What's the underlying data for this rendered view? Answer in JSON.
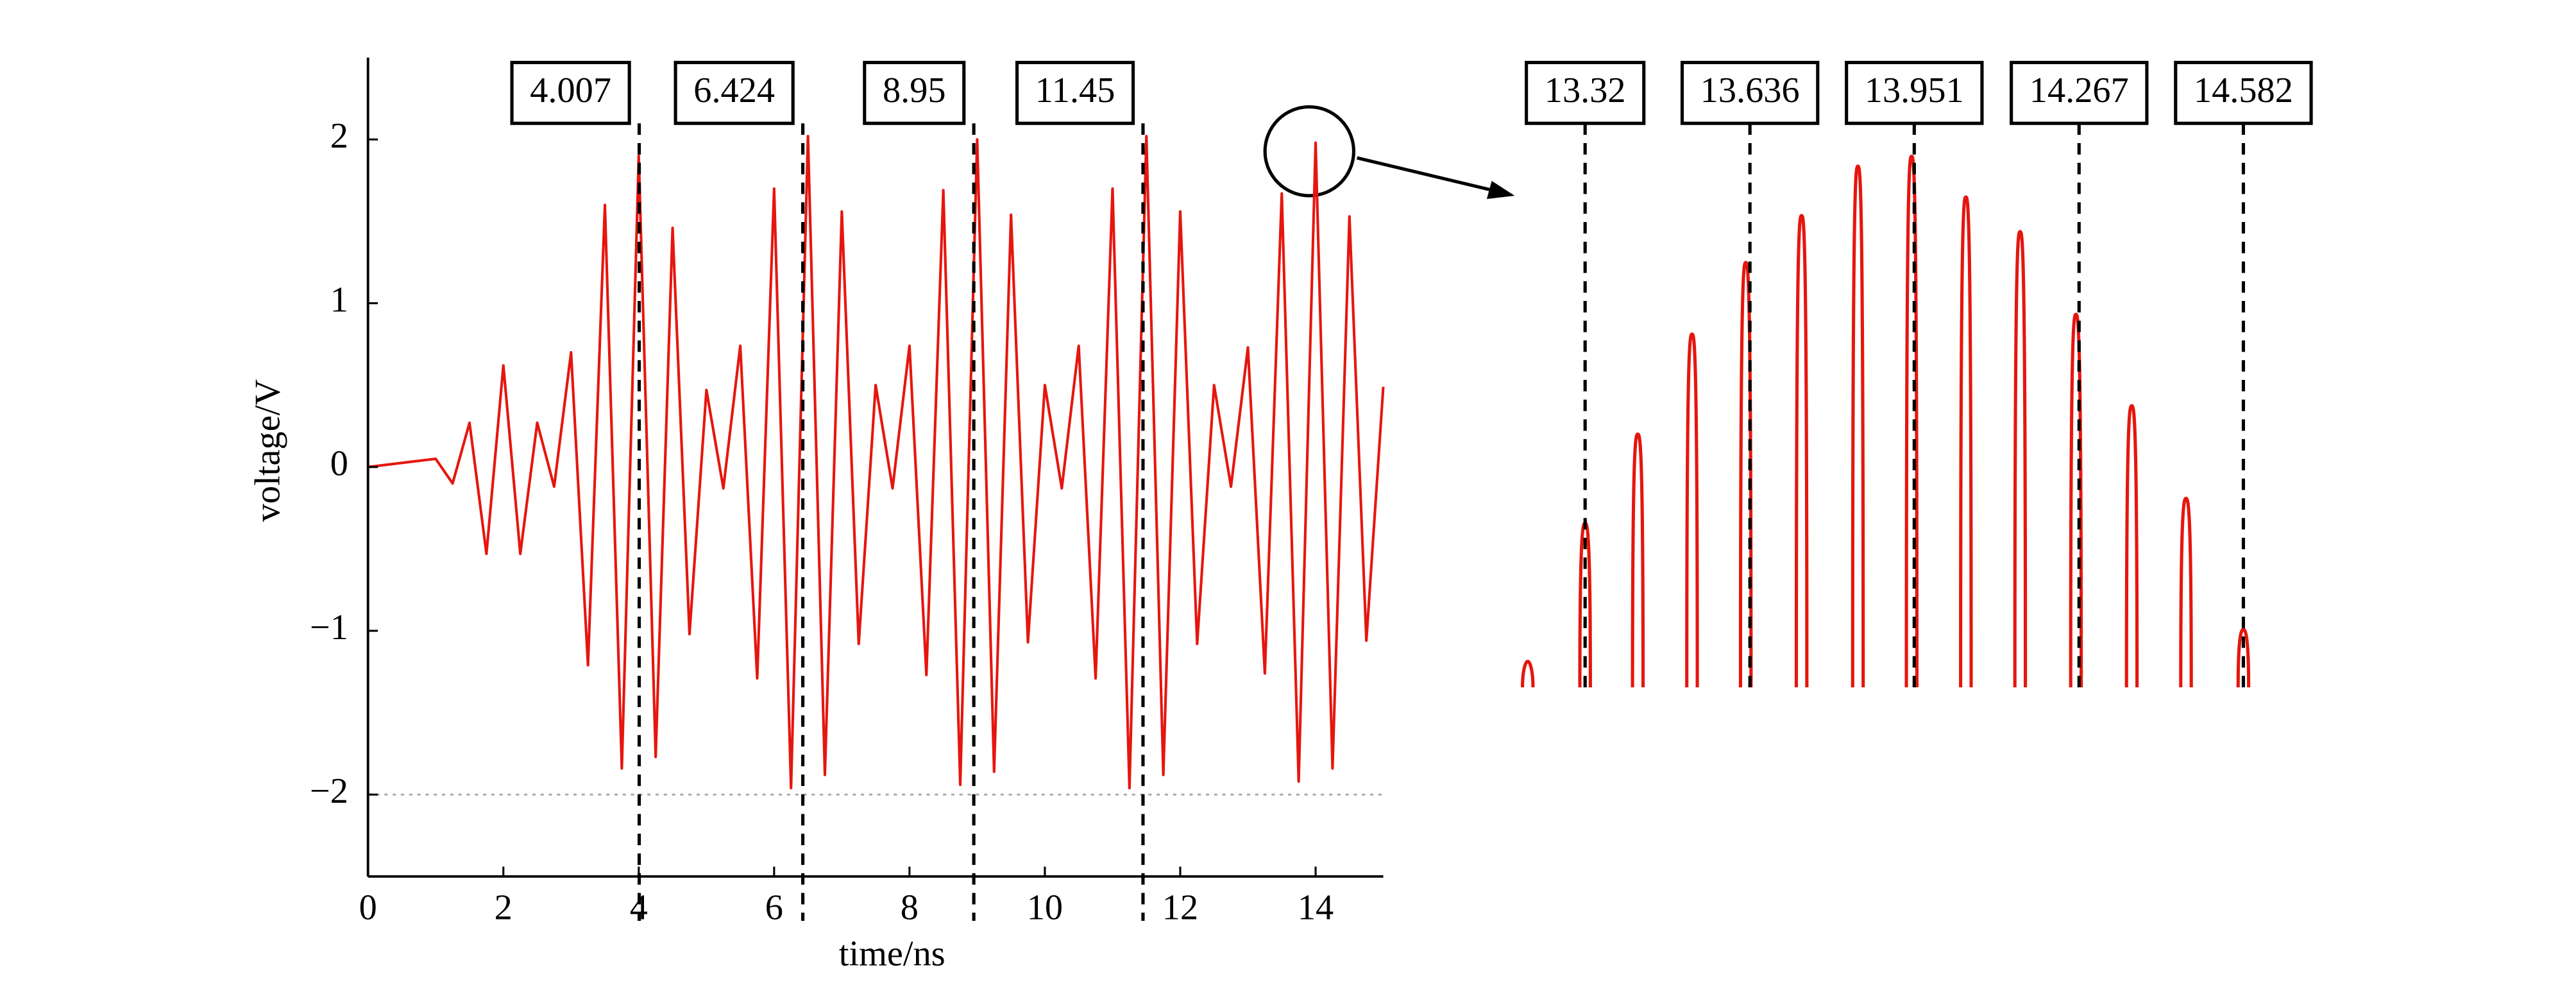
{
  "chart_data": [
    {
      "type": "line",
      "xlabel": "time/ns",
      "ylabel": "voltage/V",
      "x": [
        0,
        1.0,
        1.25,
        1.5,
        1.75,
        2.0,
        2.25,
        2.5,
        2.75,
        3.0,
        3.25,
        3.5,
        3.75,
        4.0,
        4.25,
        4.5,
        4.75,
        5.0,
        5.25,
        5.5,
        5.75,
        6.0,
        6.25,
        6.5,
        6.75,
        7.0,
        7.25,
        7.5,
        7.75,
        8.0,
        8.25,
        8.5,
        8.75,
        9.0,
        9.25,
        9.5,
        9.75,
        10.0,
        10.25,
        10.5,
        10.75,
        11.0,
        11.25,
        11.5,
        11.75,
        12.0,
        12.25,
        12.5,
        12.75,
        13.0,
        13.25,
        13.5,
        13.75,
        14.0,
        14.25,
        14.5,
        14.75,
        15.0
      ],
      "series": [
        {
          "color": "#e5160e",
          "values": [
            0,
            0.05,
            -0.1,
            0.27,
            -0.53,
            0.62,
            -0.53,
            0.27,
            -0.12,
            0.7,
            -1.21,
            1.6,
            -1.84,
            1.9,
            -1.77,
            1.46,
            -1.02,
            0.47,
            -0.13,
            0.74,
            -1.29,
            1.7,
            -1.96,
            2.02,
            -1.88,
            1.56,
            -1.08,
            0.5,
            -0.13,
            0.74,
            -1.27,
            1.69,
            -1.94,
            2.0,
            -1.86,
            1.54,
            -1.07,
            0.5,
            -0.13,
            0.74,
            -1.29,
            1.7,
            -1.96,
            2.02,
            -1.88,
            1.56,
            -1.08,
            0.5,
            -0.12,
            0.73,
            -1.26,
            1.67,
            -1.92,
            1.98,
            -1.84,
            1.53,
            -1.06,
            0.49
          ]
        }
      ],
      "xlim": [
        0,
        15
      ],
      "ylim": [
        -2.5,
        2.5
      ],
      "xticks": [
        0,
        2,
        4,
        6,
        8,
        10,
        12,
        14
      ],
      "yticks": [
        {
          "value": -2,
          "label": "−2"
        },
        {
          "value": -1,
          "label": "−1"
        },
        0,
        1,
        2
      ],
      "markers": [
        4.007,
        6.424,
        8.95,
        11.45
      ],
      "reference_line": -2
    },
    {
      "type": "stem",
      "x": [
        13.21,
        13.32,
        13.421,
        13.525,
        13.628,
        13.735,
        13.843,
        13.946,
        14.05,
        14.154,
        14.261,
        14.368,
        14.472,
        14.582
      ],
      "series": [
        {
          "color": "#e5160e",
          "values": [
            1.571,
            1.683,
            1.755,
            1.836,
            1.894,
            1.932,
            1.972,
            1.98,
            1.947,
            1.919,
            1.852,
            1.778,
            1.703,
            1.597
          ]
        }
      ],
      "xlim": [
        13.1,
        14.7
      ],
      "ylim": [
        1.55,
        2.0
      ],
      "markers": [
        13.32,
        13.636,
        13.951,
        14.267,
        14.582
      ]
    }
  ]
}
